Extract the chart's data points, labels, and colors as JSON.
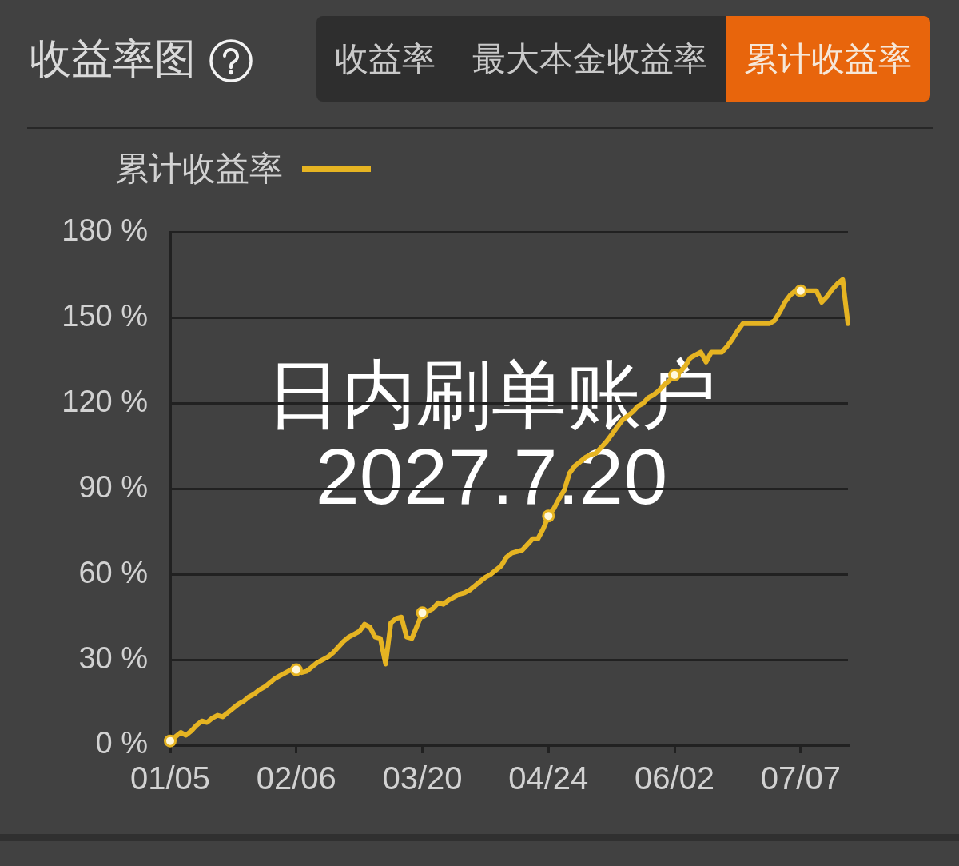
{
  "chart_data": {
    "type": "line",
    "title": "收益率图",
    "categories": [
      "01/05",
      null,
      null,
      null,
      null,
      null,
      null,
      null,
      null,
      null,
      null,
      null,
      null,
      null,
      null,
      null,
      null,
      null,
      null,
      null,
      null,
      null,
      null,
      null,
      "02/06",
      null,
      null,
      null,
      null,
      null,
      null,
      null,
      null,
      null,
      null,
      null,
      null,
      null,
      null,
      null,
      null,
      null,
      null,
      null,
      null,
      null,
      null,
      null,
      "03/20",
      null,
      null,
      null,
      null,
      null,
      null,
      null,
      null,
      null,
      null,
      null,
      null,
      null,
      null,
      null,
      null,
      null,
      null,
      null,
      null,
      null,
      null,
      null,
      "04/24",
      null,
      null,
      null,
      null,
      null,
      null,
      null,
      null,
      null,
      null,
      null,
      null,
      null,
      null,
      null,
      null,
      null,
      null,
      null,
      null,
      null,
      null,
      null,
      "06/02",
      null,
      null,
      null,
      null,
      null,
      null,
      null,
      null,
      null,
      null,
      null,
      null,
      null,
      null,
      null,
      null,
      null,
      null,
      null,
      null,
      null,
      null,
      null,
      "07/07",
      null,
      null,
      null,
      null,
      null,
      null,
      null,
      null,
      null
    ],
    "series": [
      {
        "name": "累计收益率",
        "color": "#e6b422",
        "values": [
          1.5,
          3,
          4.5,
          3.5,
          5,
          7,
          8.5,
          8,
          9.5,
          10.5,
          10,
          11.5,
          13,
          14.5,
          15.5,
          17,
          18,
          19.5,
          20.5,
          22,
          23.5,
          24.5,
          25.5,
          26.5,
          26.5,
          25.5,
          26,
          27.5,
          29,
          30,
          31,
          32.5,
          34.5,
          36.5,
          38,
          39,
          40,
          42.5,
          41.5,
          38,
          37.5,
          28.5,
          43,
          44.5,
          45,
          38,
          37.5,
          42,
          46.5,
          47,
          48,
          50,
          49.5,
          51,
          52,
          53,
          53.5,
          54.5,
          56,
          57.5,
          59,
          60,
          61.5,
          63,
          66,
          67.5,
          68,
          68.5,
          70.5,
          72.5,
          72.5,
          76,
          80.5,
          83,
          86.5,
          89.5,
          95.5,
          98,
          99.5,
          101,
          102,
          102.5,
          104.5,
          106.5,
          109,
          111.5,
          114,
          115.5,
          117,
          119,
          120,
          122,
          123,
          124.5,
          126.5,
          128,
          130,
          131,
          133,
          136,
          137,
          138,
          134.5,
          138,
          138,
          138,
          140,
          142.5,
          145.5,
          148,
          148,
          148,
          148,
          148,
          148,
          149,
          152,
          155.5,
          158,
          159.5,
          159.5,
          159.5,
          159.5,
          159.5,
          155.5,
          157.5,
          160,
          162,
          163.5,
          148
        ]
      },
      {
        "type": "scatter",
        "color": "#fff8dc",
        "x": [
          "01/05",
          "02/06",
          "03/20",
          "04/24",
          "06/02",
          "07/07"
        ],
        "values": [
          1.5,
          26.5,
          46.5,
          80.5,
          130,
          159.5
        ]
      }
    ],
    "ylim": [
      0,
      180
    ],
    "yticks": [
      {
        "value": 0,
        "label": "0 %"
      },
      {
        "value": 30,
        "label": "30 %"
      },
      {
        "value": 60,
        "label": "60 %"
      },
      {
        "value": 90,
        "label": "90 %"
      },
      {
        "value": 120,
        "label": "120 %"
      },
      {
        "value": 150,
        "label": "150 %"
      },
      {
        "value": 180,
        "label": "180 %"
      }
    ],
    "grid": "y",
    "legend": "top left",
    "line_style": "solid",
    "annotations": [
      "收益率",
      "最大本金收益率",
      "累计收益率",
      "日内刷单账户",
      "2027.7.20"
    ]
  }
}
